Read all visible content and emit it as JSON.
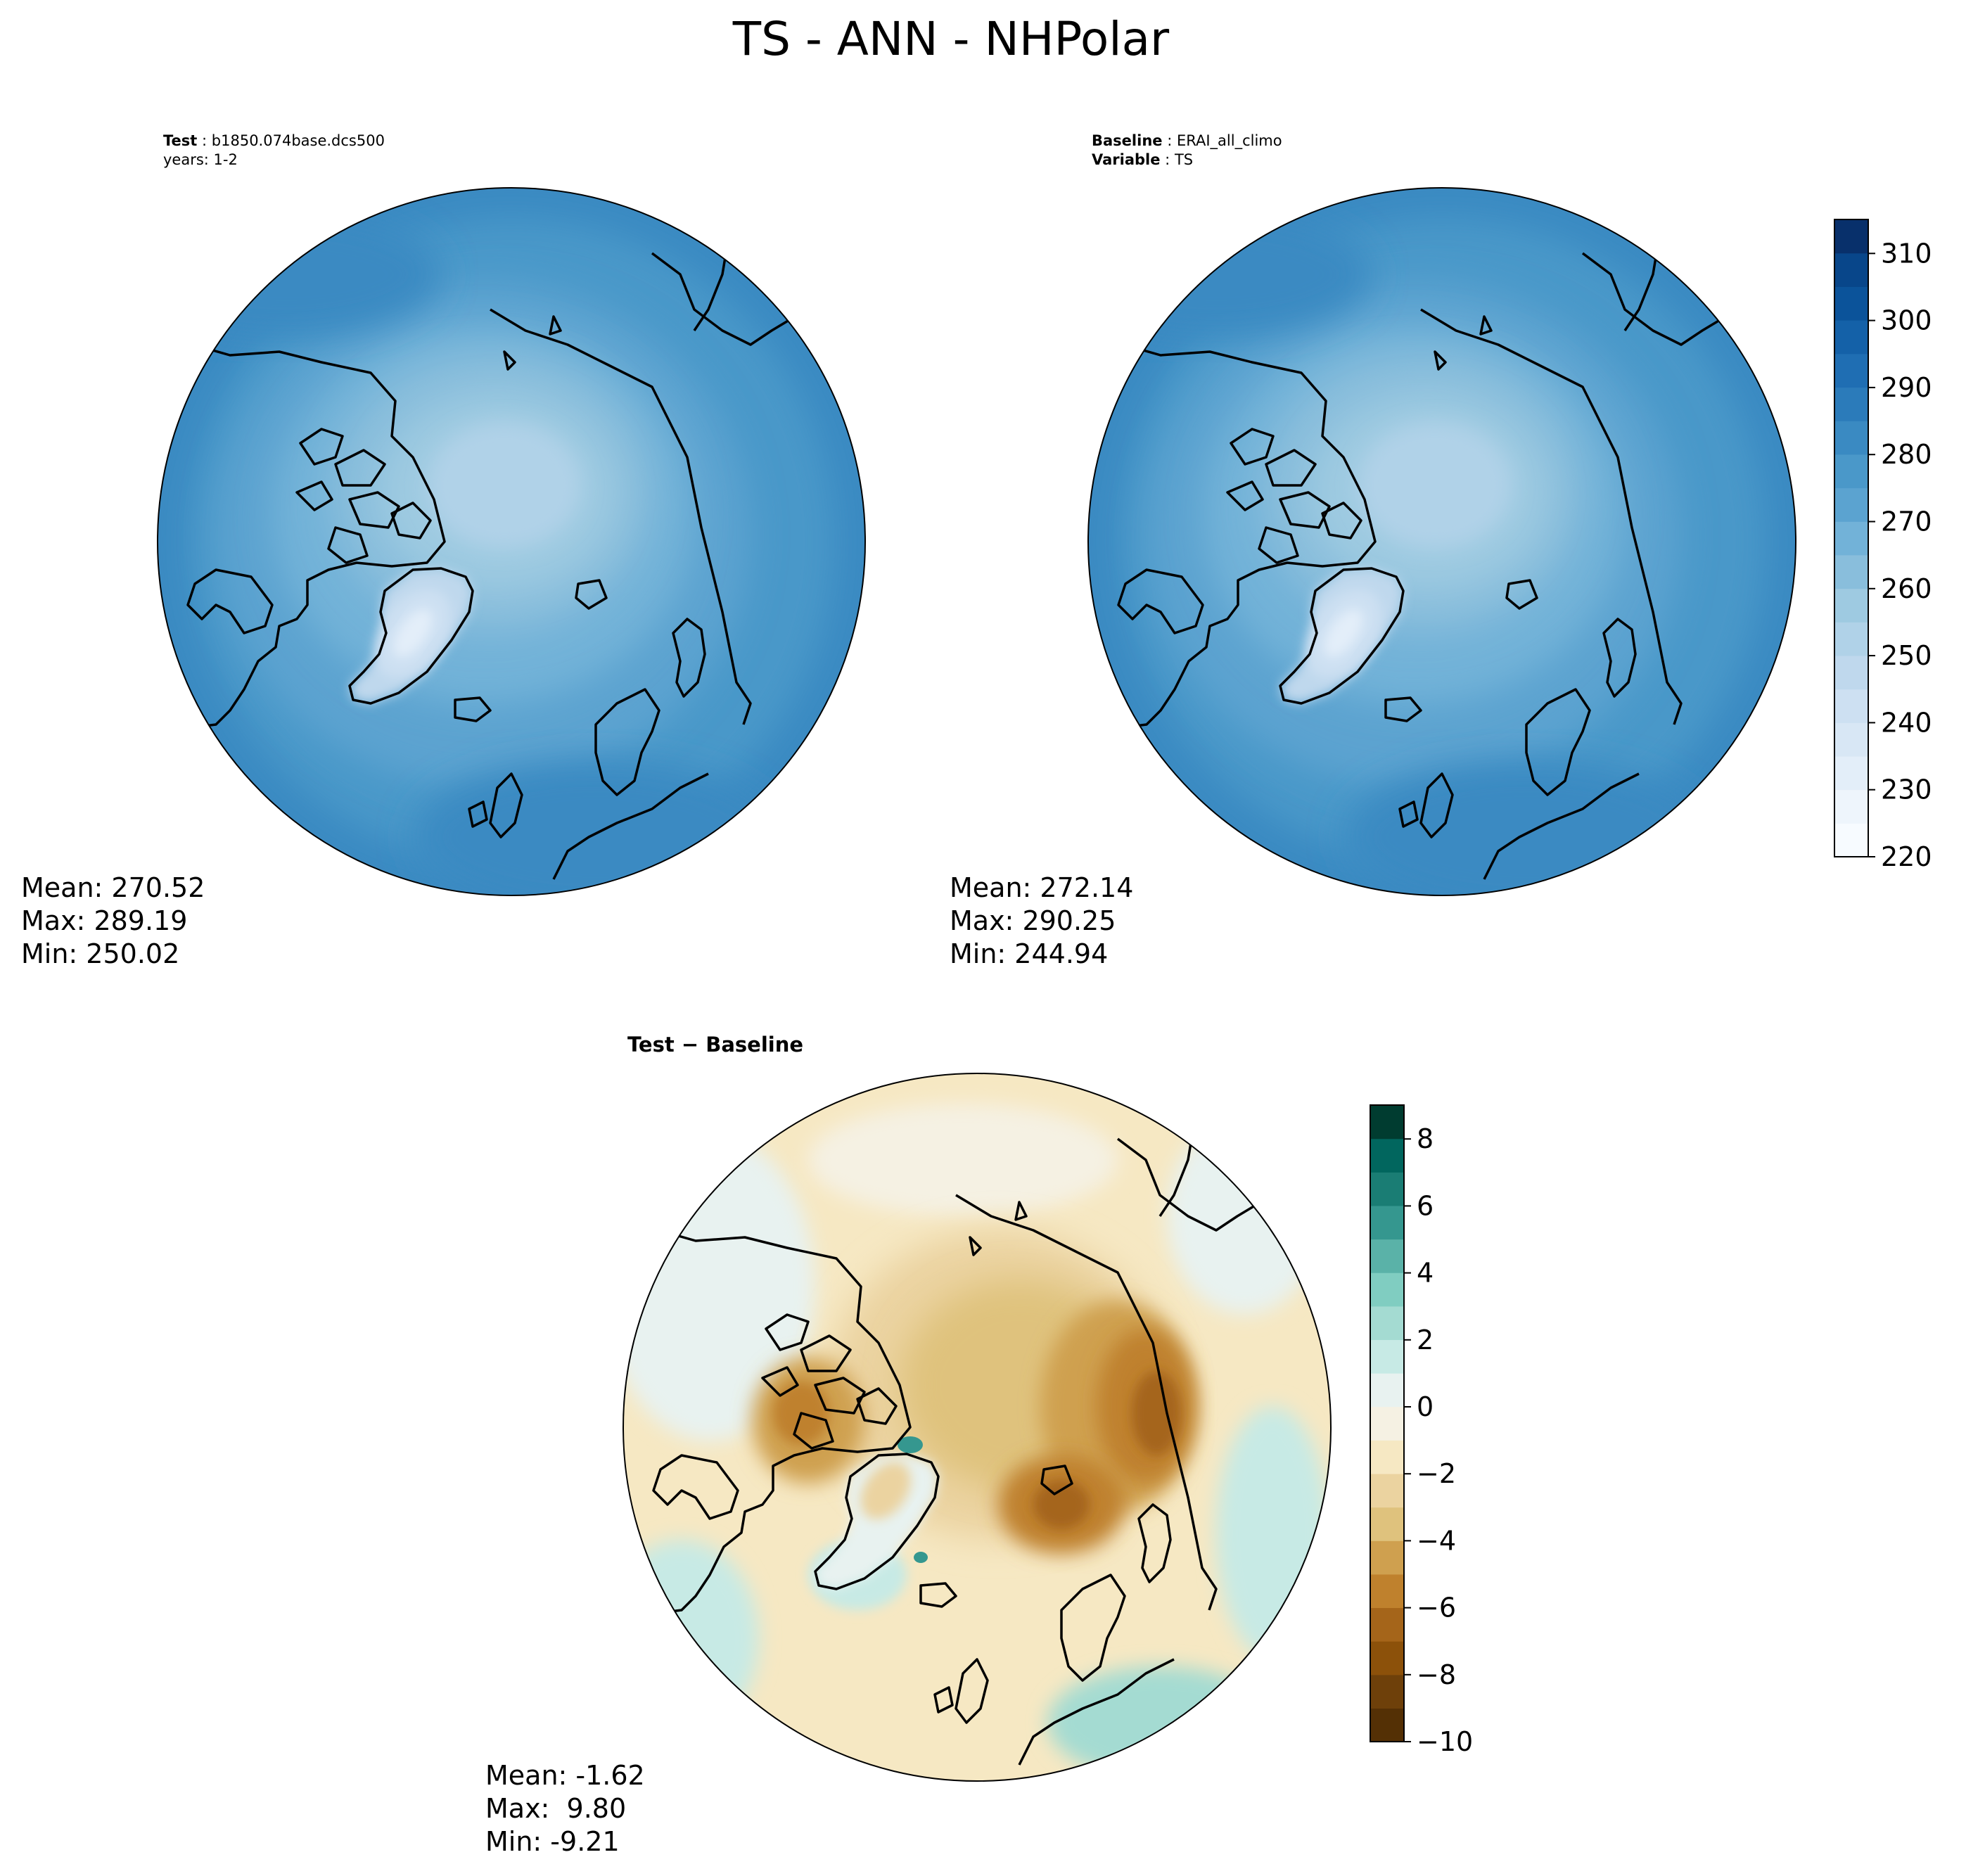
{
  "title": "TS - ANN - NHPolar",
  "panels": [
    {
      "id": "test",
      "header": [
        {
          "key": "Test",
          "value": "b1850.074base.dcs500"
        },
        {
          "key": "",
          "value": "years: 1-2"
        }
      ],
      "stats": [
        "Mean: 270.52",
        "Max: 289.19",
        "Min: 250.02"
      ],
      "colormap": "Blues"
    },
    {
      "id": "baseline",
      "header": [
        {
          "key": "Baseline",
          "value": "ERAI_all_climo"
        },
        {
          "key": "Variable",
          "value": "TS"
        }
      ],
      "stats": [
        "Mean: 272.14",
        "Max: 290.25",
        "Min: 244.94"
      ],
      "colormap": "Blues"
    },
    {
      "id": "diff",
      "header_bold": "Test − Baseline",
      "stats": [
        "Mean: -1.62",
        "Max:  9.80",
        "Min: -9.21"
      ],
      "colormap": "BrBG"
    }
  ],
  "colorbars": {
    "abs": {
      "ticks": [
        "220",
        "230",
        "240",
        "250",
        "260",
        "270",
        "280",
        "290",
        "300",
        "310"
      ],
      "min": 220,
      "max": 315,
      "levels": 19,
      "colors": [
        "#f7fbff",
        "#eef5fc",
        "#e3eef9",
        "#d8e7f5",
        "#cde0f2",
        "#bfd8ed",
        "#b0d2e8",
        "#9ecae1",
        "#89bedc",
        "#72b2d8",
        "#5ba3d0",
        "#4a98c9",
        "#3a8ac2",
        "#2b7bba",
        "#1f6eb3",
        "#1461a8",
        "#0b539a",
        "#08468a",
        "#08306b"
      ]
    },
    "diff": {
      "ticks": [
        "−10",
        "−8",
        "−6",
        "−4",
        "−2",
        "0",
        "2",
        "4",
        "6",
        "8"
      ],
      "min": -10,
      "max": 9,
      "levels": 19,
      "colors": [
        "#543005",
        "#6e400a",
        "#8c510a",
        "#a5651a",
        "#bf812d",
        "#cfa04f",
        "#dfc27d",
        "#ebd3a0",
        "#f6e8c3",
        "#f5f1e3",
        "#e8f2f0",
        "#c7eae5",
        "#a4dbd2",
        "#80cdc1",
        "#5ab2a8",
        "#35978f",
        "#1a7d74",
        "#01665e",
        "#003c30"
      ]
    }
  }
}
